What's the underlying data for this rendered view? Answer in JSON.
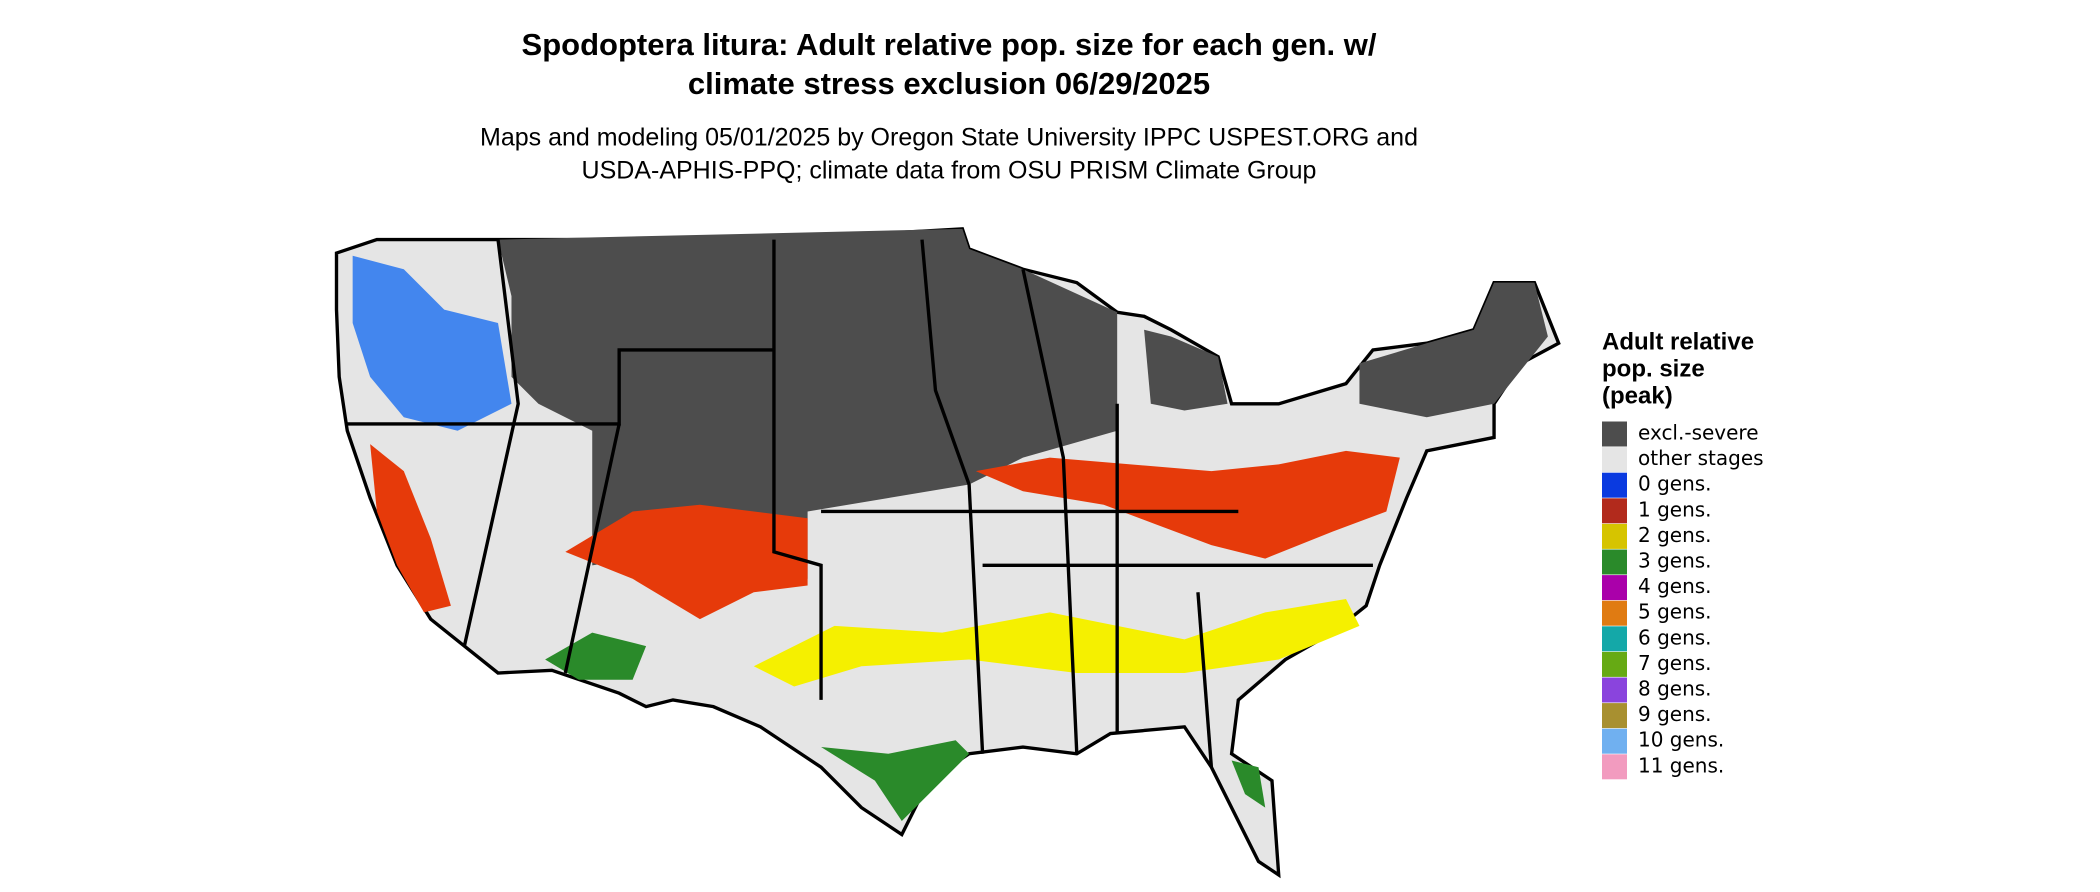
{
  "title": [
    "Spodoptera litura: Adult relative pop. size for each gen. w/",
    "climate stress exclusion 06/29/2025"
  ],
  "subtitle": [
    "Maps and modeling 05/01/2025 by Oregon State University IPPC USPEST.ORG and",
    "USDA-APHIS-PPQ; climate data from OSU PRISM Climate Group"
  ],
  "legend": {
    "title": [
      "Adult relative",
      "pop. size",
      "(peak)"
    ],
    "items": [
      {
        "label": "excl.-severe",
        "color": "#4d4d4d"
      },
      {
        "label": "other stages",
        "color": "#e5e5e5"
      },
      {
        "label": "0 gens.",
        "color": "#0a3ae0"
      },
      {
        "label": "1 gens.",
        "color": "#b22a1c"
      },
      {
        "label": "2 gens.",
        "color": "#d6c400"
      },
      {
        "label": "3 gens.",
        "color": "#2a8a2a"
      },
      {
        "label": "4 gens.",
        "color": "#aa00aa"
      },
      {
        "label": "5 gens.",
        "color": "#e07b12"
      },
      {
        "label": "6 gens.",
        "color": "#14a8a8"
      },
      {
        "label": "7 gens.",
        "color": "#66aa14"
      },
      {
        "label": "8 gens.",
        "color": "#8a44dd"
      },
      {
        "label": "9 gens.",
        "color": "#a89030"
      },
      {
        "label": "10 gens.",
        "color": "#70b0f0"
      },
      {
        "label": "11 gens.",
        "color": "#f29bbf"
      }
    ]
  }
}
